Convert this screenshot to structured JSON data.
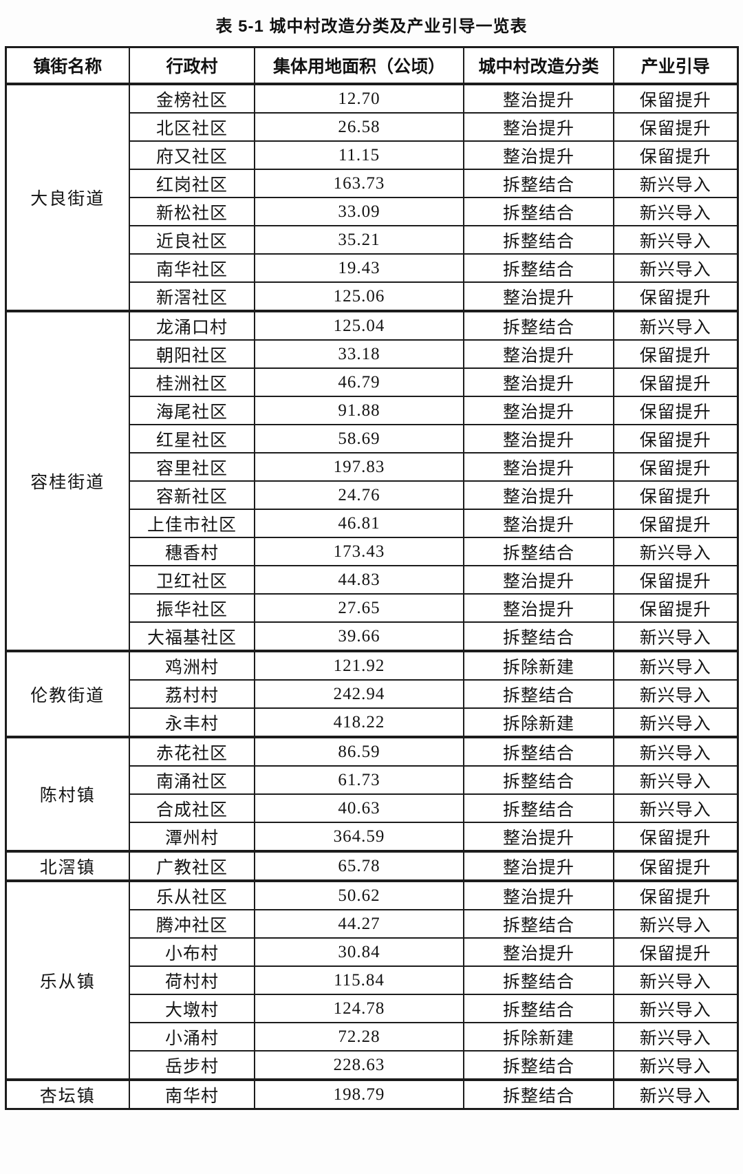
{
  "title": "表 5-1 城中村改造分类及产业引导一览表",
  "table": {
    "columns": [
      "镇街名称",
      "行政村",
      "集体用地面积（公顷）",
      "城中村改造分类",
      "产业引导"
    ],
    "groups": [
      {
        "town": "大良街道",
        "rows": [
          [
            "金榜社区",
            "12.70",
            "整治提升",
            "保留提升"
          ],
          [
            "北区社区",
            "26.58",
            "整治提升",
            "保留提升"
          ],
          [
            "府又社区",
            "11.15",
            "整治提升",
            "保留提升"
          ],
          [
            "红岗社区",
            "163.73",
            "拆整结合",
            "新兴导入"
          ],
          [
            "新松社区",
            "33.09",
            "拆整结合",
            "新兴导入"
          ],
          [
            "近良社区",
            "35.21",
            "拆整结合",
            "新兴导入"
          ],
          [
            "南华社区",
            "19.43",
            "拆整结合",
            "新兴导入"
          ],
          [
            "新滘社区",
            "125.06",
            "整治提升",
            "保留提升"
          ]
        ]
      },
      {
        "town": "容桂街道",
        "rows": [
          [
            "龙涌口村",
            "125.04",
            "拆整结合",
            "新兴导入"
          ],
          [
            "朝阳社区",
            "33.18",
            "整治提升",
            "保留提升"
          ],
          [
            "桂洲社区",
            "46.79",
            "整治提升",
            "保留提升"
          ],
          [
            "海尾社区",
            "91.88",
            "整治提升",
            "保留提升"
          ],
          [
            "红星社区",
            "58.69",
            "整治提升",
            "保留提升"
          ],
          [
            "容里社区",
            "197.83",
            "整治提升",
            "保留提升"
          ],
          [
            "容新社区",
            "24.76",
            "整治提升",
            "保留提升"
          ],
          [
            "上佳市社区",
            "46.81",
            "整治提升",
            "保留提升"
          ],
          [
            "穗香村",
            "173.43",
            "拆整结合",
            "新兴导入"
          ],
          [
            "卫红社区",
            "44.83",
            "整治提升",
            "保留提升"
          ],
          [
            "振华社区",
            "27.65",
            "整治提升",
            "保留提升"
          ],
          [
            "大福基社区",
            "39.66",
            "拆整结合",
            "新兴导入"
          ]
        ]
      },
      {
        "town": "伦教街道",
        "rows": [
          [
            "鸡洲村",
            "121.92",
            "拆除新建",
            "新兴导入"
          ],
          [
            "荔村村",
            "242.94",
            "拆整结合",
            "新兴导入"
          ],
          [
            "永丰村",
            "418.22",
            "拆除新建",
            "新兴导入"
          ]
        ]
      },
      {
        "town": "陈村镇",
        "rows": [
          [
            "赤花社区",
            "86.59",
            "拆整结合",
            "新兴导入"
          ],
          [
            "南涌社区",
            "61.73",
            "拆整结合",
            "新兴导入"
          ],
          [
            "合成社区",
            "40.63",
            "拆整结合",
            "新兴导入"
          ],
          [
            "潭州村",
            "364.59",
            "整治提升",
            "保留提升"
          ]
        ]
      },
      {
        "town": "北滘镇",
        "rows": [
          [
            "广教社区",
            "65.78",
            "整治提升",
            "保留提升"
          ]
        ]
      },
      {
        "town": "乐从镇",
        "rows": [
          [
            "乐从社区",
            "50.62",
            "整治提升",
            "保留提升"
          ],
          [
            "腾冲社区",
            "44.27",
            "拆整结合",
            "新兴导入"
          ],
          [
            "小布村",
            "30.84",
            "整治提升",
            "保留提升"
          ],
          [
            "荷村村",
            "115.84",
            "拆整结合",
            "新兴导入"
          ],
          [
            "大墩村",
            "124.78",
            "拆整结合",
            "新兴导入"
          ],
          [
            "小涌村",
            "72.28",
            "拆除新建",
            "新兴导入"
          ],
          [
            "岳步村",
            "228.63",
            "拆整结合",
            "新兴导入"
          ]
        ]
      },
      {
        "town": "杏坛镇",
        "rows": [
          [
            "南华村",
            "198.79",
            "拆整结合",
            "新兴导入"
          ]
        ]
      }
    ]
  }
}
